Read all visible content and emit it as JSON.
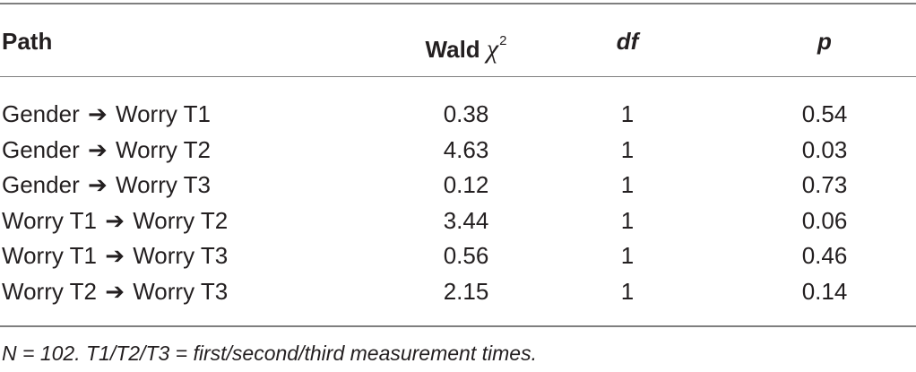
{
  "table": {
    "headers": {
      "path": "Path",
      "wald": "Wald",
      "chi_symbol": "χ",
      "chi_sup": "2",
      "df": "df",
      "p": "p"
    },
    "arrow": "➔",
    "rows": [
      {
        "from": "Gender",
        "to": "Worry T1",
        "wald": "0.38",
        "df": "1",
        "p": "0.54"
      },
      {
        "from": "Gender",
        "to": "Worry T2",
        "wald": "4.63",
        "df": "1",
        "p": "0.03"
      },
      {
        "from": "Gender",
        "to": "Worry T3",
        "wald": "0.12",
        "df": "1",
        "p": "0.73"
      },
      {
        "from": "Worry T1",
        "to": "Worry T2",
        "wald": "3.44",
        "df": "1",
        "p": "0.06"
      },
      {
        "from": "Worry T1",
        "to": "Worry T3",
        "wald": "0.56",
        "df": "1",
        "p": "0.46"
      },
      {
        "from": "Worry T2",
        "to": "Worry T3",
        "wald": "2.15",
        "df": "1",
        "p": "0.14"
      }
    ],
    "note": "N = 102. T1/T2/T3 = first/second/third measurement times."
  }
}
